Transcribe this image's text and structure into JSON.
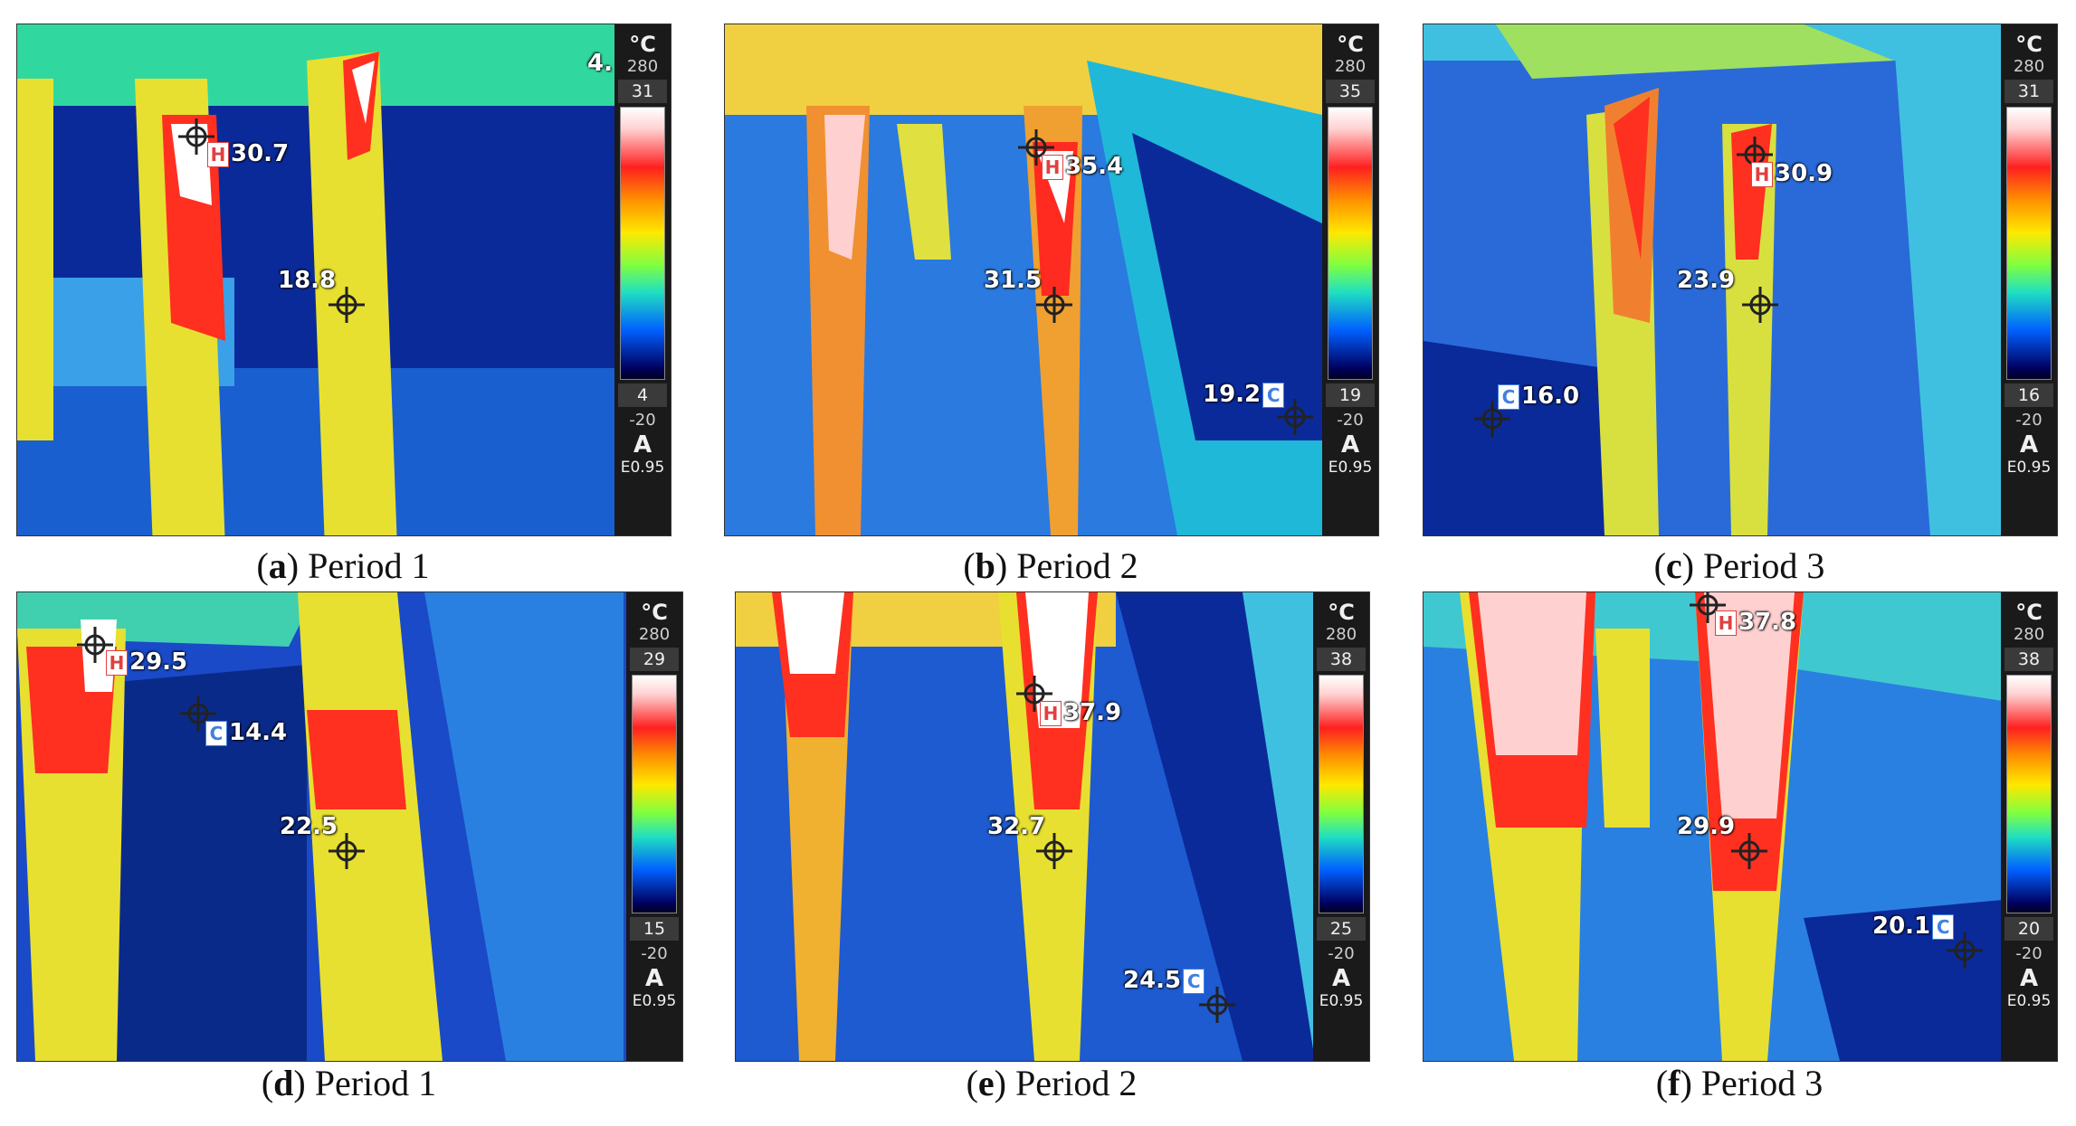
{
  "panels": [
    {
      "letter": "a",
      "period": "Period 1",
      "scale": {
        "unit": "°C",
        "range_max": "280",
        "max": "31",
        "min": "4",
        "range_min": "-20",
        "mode": "A",
        "emissivity": "E0.95"
      },
      "markers": [
        {
          "kind": "H",
          "value": "30.7"
        },
        {
          "kind": "",
          "value": "18.8"
        },
        {
          "kind": "",
          "value": "4."
        }
      ]
    },
    {
      "letter": "b",
      "period": "Period 2",
      "scale": {
        "unit": "°C",
        "range_max": "280",
        "max": "35",
        "min": "19",
        "range_min": "-20",
        "mode": "A",
        "emissivity": "E0.95"
      },
      "markers": [
        {
          "kind": "H",
          "value": "35.4"
        },
        {
          "kind": "",
          "value": "31.5"
        },
        {
          "kind": "C",
          "value": "19.2"
        }
      ]
    },
    {
      "letter": "c",
      "period": "Period 3",
      "scale": {
        "unit": "°C",
        "range_max": "280",
        "max": "31",
        "min": "16",
        "range_min": "-20",
        "mode": "A",
        "emissivity": "E0.95"
      },
      "markers": [
        {
          "kind": "H",
          "value": "30.9"
        },
        {
          "kind": "",
          "value": "23.9"
        },
        {
          "kind": "C",
          "value": "16.0"
        }
      ]
    },
    {
      "letter": "d",
      "period": "Period 1",
      "scale": {
        "unit": "°C",
        "range_max": "280",
        "max": "29",
        "min": "15",
        "range_min": "-20",
        "mode": "A",
        "emissivity": "E0.95"
      },
      "markers": [
        {
          "kind": "H",
          "value": "29.5"
        },
        {
          "kind": "C",
          "value": "14.4"
        },
        {
          "kind": "",
          "value": "22.5"
        }
      ]
    },
    {
      "letter": "e",
      "period": "Period 2",
      "scale": {
        "unit": "°C",
        "range_max": "280",
        "max": "38",
        "min": "25",
        "range_min": "-20",
        "mode": "A",
        "emissivity": "E0.95"
      },
      "markers": [
        {
          "kind": "H",
          "value": "37.9"
        },
        {
          "kind": "",
          "value": "32.7"
        },
        {
          "kind": "C",
          "value": "24.5"
        }
      ]
    },
    {
      "letter": "f",
      "period": "Period 3",
      "scale": {
        "unit": "°C",
        "range_max": "280",
        "max": "38",
        "min": "20",
        "range_min": "-20",
        "mode": "A",
        "emissivity": "E0.95"
      },
      "markers": [
        {
          "kind": "H",
          "value": "37.8"
        },
        {
          "kind": "",
          "value": "29.9"
        },
        {
          "kind": "C",
          "value": "20.1"
        }
      ]
    }
  ]
}
